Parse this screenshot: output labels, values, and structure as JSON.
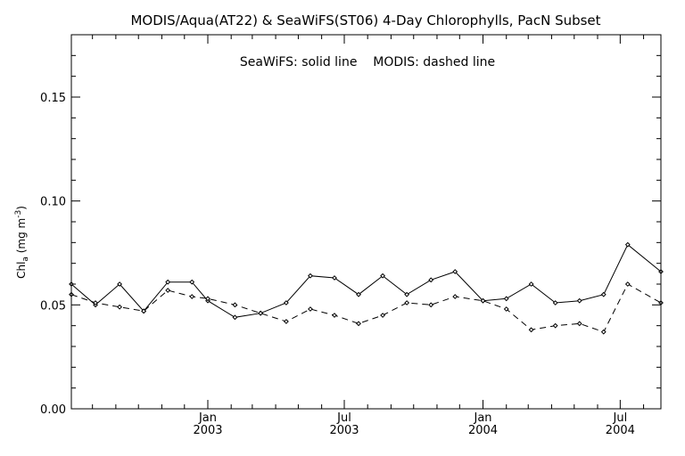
{
  "chart_data": {
    "type": "line",
    "title": "MODIS/Aqua(AT22) & SeaWiFS(ST06) 4-Day Chlorophylls, PacN Subset",
    "legend_text": "SeaWiFS: solid line    MODIS: dashed line",
    "ylabel": "Chl_a (mg m^-3)",
    "ylim": [
      0.0,
      0.18
    ],
    "yticks": [
      {
        "value": 0.0,
        "label": "0.00"
      },
      {
        "value": 0.05,
        "label": "0.05"
      },
      {
        "value": 0.1,
        "label": "0.10"
      },
      {
        "value": 0.15,
        "label": "0.15"
      }
    ],
    "xlim": [
      "2002-07-04",
      "2004-08-24"
    ],
    "xticks": [
      {
        "date": "2003-01-01",
        "month": "Jan",
        "year": "2003"
      },
      {
        "date": "2003-07-01",
        "month": "Jul",
        "year": "2003"
      },
      {
        "date": "2004-01-01",
        "month": "Jan",
        "year": "2004"
      },
      {
        "date": "2004-07-01",
        "month": "Jul",
        "year": "2004"
      }
    ],
    "series": [
      {
        "name": "SeaWiFS",
        "style": "solid",
        "points": [
          {
            "x": "2002-07-04",
            "y": 0.06
          },
          {
            "x": "2002-08-05",
            "y": 0.05
          },
          {
            "x": "2002-09-06",
            "y": 0.06
          },
          {
            "x": "2002-10-08",
            "y": 0.047
          },
          {
            "x": "2002-11-09",
            "y": 0.061
          },
          {
            "x": "2002-12-11",
            "y": 0.061
          },
          {
            "x": "2003-01-01",
            "y": 0.052
          },
          {
            "x": "2003-02-06",
            "y": 0.044
          },
          {
            "x": "2003-03-12",
            "y": 0.046
          },
          {
            "x": "2003-04-15",
            "y": 0.051
          },
          {
            "x": "2003-05-17",
            "y": 0.064
          },
          {
            "x": "2003-06-18",
            "y": 0.063
          },
          {
            "x": "2003-07-20",
            "y": 0.055
          },
          {
            "x": "2003-08-21",
            "y": 0.064
          },
          {
            "x": "2003-09-22",
            "y": 0.055
          },
          {
            "x": "2003-10-24",
            "y": 0.062
          },
          {
            "x": "2003-11-25",
            "y": 0.066
          },
          {
            "x": "2004-01-01",
            "y": 0.052
          },
          {
            "x": "2004-02-01",
            "y": 0.053
          },
          {
            "x": "2004-03-05",
            "y": 0.06
          },
          {
            "x": "2004-04-06",
            "y": 0.051
          },
          {
            "x": "2004-05-08",
            "y": 0.052
          },
          {
            "x": "2004-06-09",
            "y": 0.055
          },
          {
            "x": "2004-07-11",
            "y": 0.079
          },
          {
            "x": "2004-08-24",
            "y": 0.066
          }
        ]
      },
      {
        "name": "MODIS",
        "style": "dashed",
        "points": [
          {
            "x": "2002-07-04",
            "y": 0.055
          },
          {
            "x": "2002-08-05",
            "y": 0.051
          },
          {
            "x": "2002-09-06",
            "y": 0.049
          },
          {
            "x": "2002-10-08",
            "y": 0.047
          },
          {
            "x": "2002-11-09",
            "y": 0.057
          },
          {
            "x": "2002-12-11",
            "y": 0.054
          },
          {
            "x": "2003-01-01",
            "y": 0.053
          },
          {
            "x": "2003-02-06",
            "y": 0.05
          },
          {
            "x": "2003-03-12",
            "y": 0.046
          },
          {
            "x": "2003-04-15",
            "y": 0.042
          },
          {
            "x": "2003-05-17",
            "y": 0.048
          },
          {
            "x": "2003-06-18",
            "y": 0.045
          },
          {
            "x": "2003-07-20",
            "y": 0.041
          },
          {
            "x": "2003-08-21",
            "y": 0.045
          },
          {
            "x": "2003-09-22",
            "y": 0.051
          },
          {
            "x": "2003-10-24",
            "y": 0.05
          },
          {
            "x": "2003-11-25",
            "y": 0.054
          },
          {
            "x": "2004-01-01",
            "y": 0.052
          },
          {
            "x": "2004-02-01",
            "y": 0.048
          },
          {
            "x": "2004-03-05",
            "y": 0.038
          },
          {
            "x": "2004-04-06",
            "y": 0.04
          },
          {
            "x": "2004-05-08",
            "y": 0.041
          },
          {
            "x": "2004-06-09",
            "y": 0.037
          },
          {
            "x": "2004-07-11",
            "y": 0.06
          },
          {
            "x": "2004-08-24",
            "y": 0.051
          }
        ]
      }
    ],
    "grid": false,
    "legend_position": "top-center"
  }
}
